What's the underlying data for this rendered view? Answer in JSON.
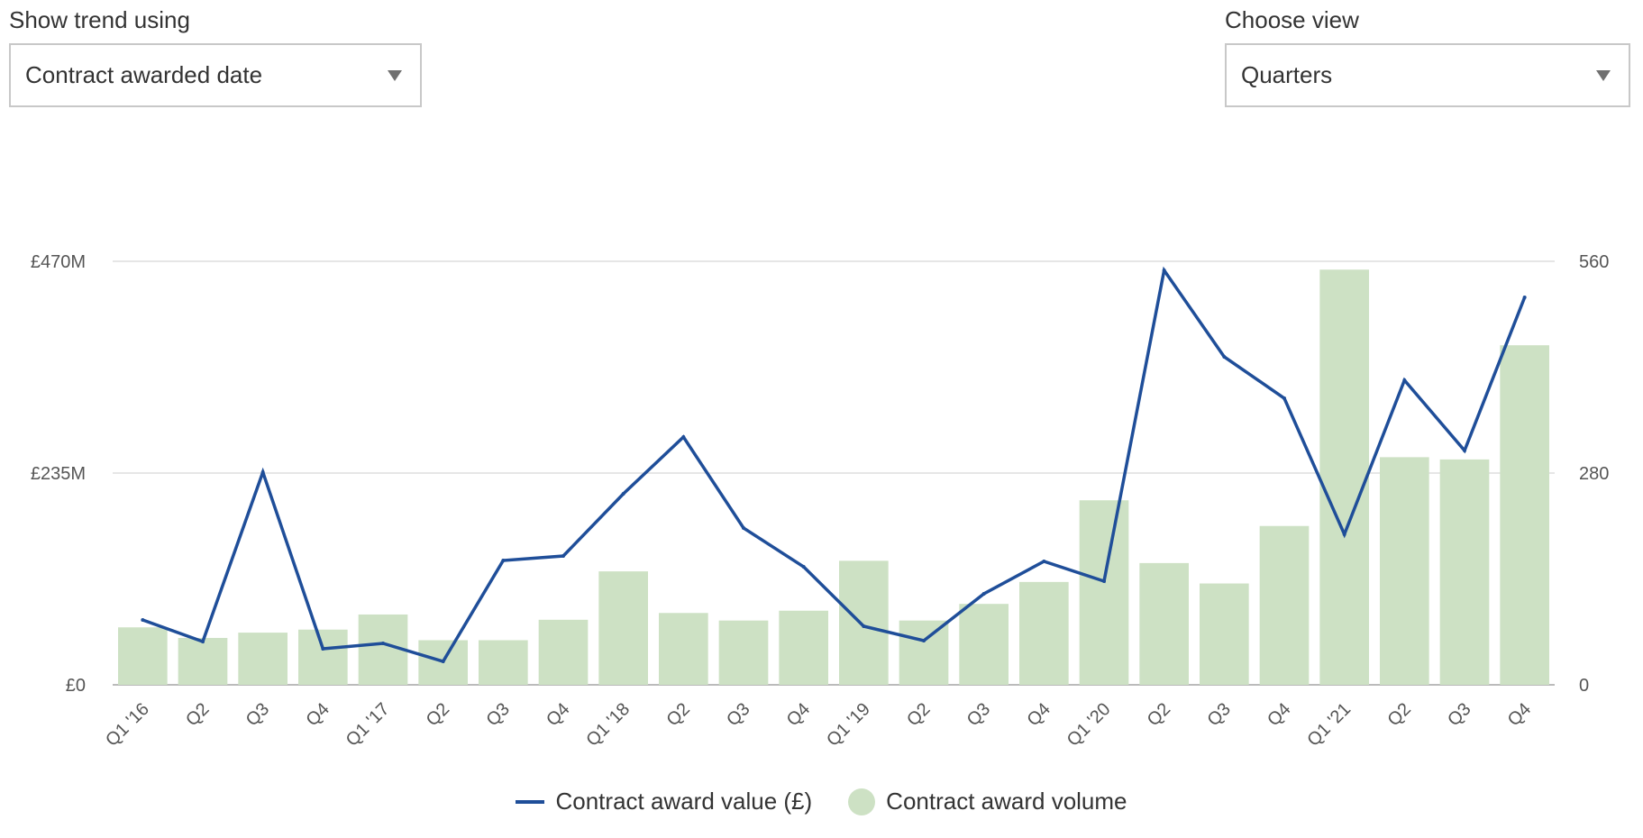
{
  "controls": {
    "trend": {
      "label": "Show trend using",
      "value": "Contract awarded date"
    },
    "view": {
      "label": "Choose view",
      "value": "Quarters"
    }
  },
  "colors": {
    "line": "#1f4e99",
    "bar": "#cde1c4",
    "grid": "#dddddd",
    "axis": "#bbbbbb"
  },
  "chart_data": {
    "type": "bar",
    "categories": [
      "Q1 '16",
      "Q2",
      "Q3",
      "Q4",
      "Q1 '17",
      "Q2",
      "Q3",
      "Q4",
      "Q1 '18",
      "Q2",
      "Q3",
      "Q4",
      "Q1 '19",
      "Q2",
      "Q3",
      "Q4",
      "Q1 '20",
      "Q2",
      "Q3",
      "Q4",
      "Q1 '21",
      "Q2",
      "Q3",
      "Q4"
    ],
    "series": [
      {
        "name": "Contract award value (£)",
        "type": "line",
        "axis": "left",
        "unit": "£M",
        "values": [
          72,
          48,
          236,
          40,
          46,
          26,
          138,
          143,
          212,
          275,
          174,
          131,
          65,
          49,
          101,
          137,
          115,
          460,
          364,
          318,
          167,
          338,
          260,
          430
        ]
      },
      {
        "name": "Contract award volume",
        "type": "bar",
        "axis": "right",
        "values": [
          76,
          62,
          69,
          73,
          93,
          59,
          59,
          86,
          150,
          95,
          85,
          98,
          164,
          85,
          107,
          136,
          244,
          161,
          134,
          210,
          549,
          301,
          298,
          449
        ]
      }
    ],
    "y_left": {
      "ticks": [
        "£0",
        "£235M",
        "£470M"
      ],
      "tick_values": [
        0,
        235,
        470
      ],
      "range": [
        0,
        470
      ]
    },
    "y_right": {
      "ticks": [
        "0",
        "280",
        "560"
      ],
      "tick_values": [
        0,
        280,
        560
      ],
      "range": [
        0,
        560
      ]
    },
    "xlabel": "",
    "ylabel": "",
    "legend": {
      "position": "bottom",
      "entries": [
        "Contract award value (£)",
        "Contract award volume"
      ]
    },
    "grid": true
  }
}
